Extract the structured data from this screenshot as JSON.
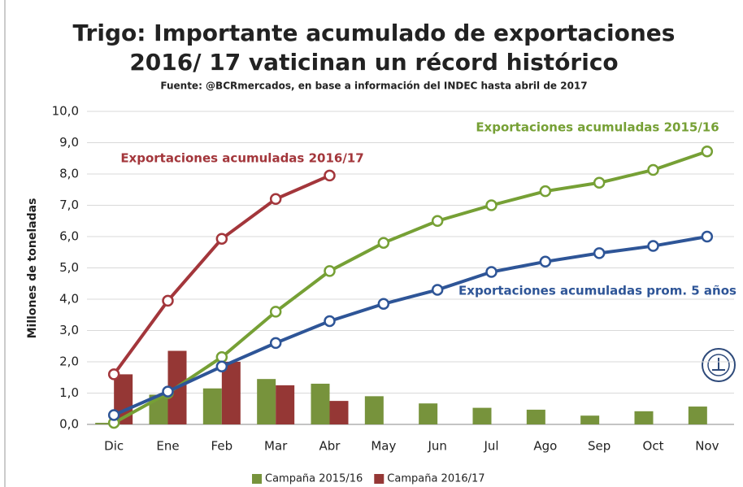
{
  "chart_data": {
    "type": "bar",
    "title": "Trigo: Importante acumulado de exportaciones",
    "subtitle": "2016/ 17 vaticinan un récord histórico",
    "source": "Fuente: @BCRmercados, en base a información del INDEC hasta abril de 2017",
    "ylabel": "Millones de toneladas",
    "categories": [
      "Dic",
      "Ene",
      "Feb",
      "Mar",
      "Abr",
      "May",
      "Jun",
      "Jul",
      "Ago",
      "Sep",
      "Oct",
      "Nov"
    ],
    "series": [
      {
        "name": "Campaña 2015/16",
        "color": "#77933c",
        "values": [
          0.05,
          0.95,
          1.15,
          1.45,
          1.3,
          0.9,
          0.67,
          0.53,
          0.47,
          0.28,
          0.42,
          0.57
        ]
      },
      {
        "name": "Campaña 2016/17",
        "color": "#953735",
        "values": [
          1.6,
          2.35,
          2.0,
          1.25,
          0.75,
          null,
          null,
          null,
          null,
          null,
          null,
          null
        ]
      }
    ],
    "lines": [
      {
        "name": "Exportaciones acumuladas 2016/17",
        "color": "#a3363b",
        "values": [
          1.6,
          3.95,
          5.93,
          7.2,
          7.95,
          null,
          null,
          null,
          null,
          null,
          null,
          null
        ]
      },
      {
        "name": "Exportaciones acumuladas 2015/16",
        "color": "#76a035",
        "values": [
          0.05,
          1.0,
          2.15,
          3.6,
          4.9,
          5.8,
          6.5,
          7.0,
          7.45,
          7.72,
          8.13,
          8.72
        ]
      },
      {
        "name": "Exportaciones acumuladas prom. 5 años",
        "color": "#2e5597",
        "values": [
          0.3,
          1.05,
          1.85,
          2.6,
          3.3,
          3.85,
          4.3,
          4.87,
          5.2,
          5.47,
          5.7,
          6.0
        ]
      }
    ],
    "ylim": [
      0,
      10
    ],
    "yticks": [
      {
        "value": 0,
        "label": "0,0"
      },
      {
        "value": 1,
        "label": "1,0"
      },
      {
        "value": 2,
        "label": "2,0"
      },
      {
        "value": 3,
        "label": "3,0"
      },
      {
        "value": 4,
        "label": "4,0"
      },
      {
        "value": 5,
        "label": "5,0"
      },
      {
        "value": 6,
        "label": "6,0"
      },
      {
        "value": 7,
        "label": "7,0"
      },
      {
        "value": 8,
        "label": "8,0"
      },
      {
        "value": 9,
        "label": "9,0"
      },
      {
        "value": 10,
        "label": "10,0"
      }
    ],
    "grid": true,
    "legend": "bottom"
  }
}
